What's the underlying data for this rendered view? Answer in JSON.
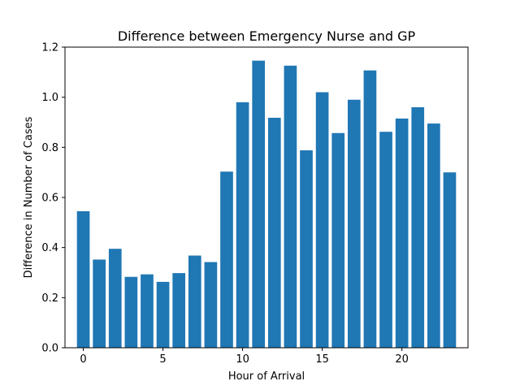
{
  "chart_data": {
    "type": "bar",
    "title": "Difference between Emergency Nurse and GP",
    "xlabel": "Hour of Arrival",
    "ylabel": "Difference in Number of Cases",
    "x": [
      0,
      1,
      2,
      3,
      4,
      5,
      6,
      7,
      8,
      9,
      10,
      11,
      12,
      13,
      14,
      15,
      16,
      17,
      18,
      19,
      20,
      21,
      22,
      23
    ],
    "values": [
      0.545,
      0.352,
      0.395,
      0.283,
      0.293,
      0.263,
      0.298,
      0.368,
      0.342,
      0.703,
      0.98,
      1.146,
      0.918,
      1.126,
      0.788,
      1.02,
      0.857,
      0.99,
      1.107,
      0.862,
      0.915,
      0.96,
      0.895,
      0.7
    ],
    "xlim": [
      -1.15,
      24.15
    ],
    "ylim": [
      0,
      1.2
    ],
    "xticks": [
      0,
      5,
      10,
      15,
      20
    ],
    "xtick_labels": [
      "0",
      "5",
      "10",
      "15",
      "20"
    ],
    "yticks": [
      0,
      0.2,
      0.4,
      0.6,
      0.8,
      1.0,
      1.2
    ],
    "ytick_labels": [
      "0.0",
      "0.2",
      "0.4",
      "0.6",
      "0.8",
      "1.0",
      "1.2"
    ],
    "bar_color": "#1f77b4",
    "grid": false,
    "legend": "none"
  }
}
